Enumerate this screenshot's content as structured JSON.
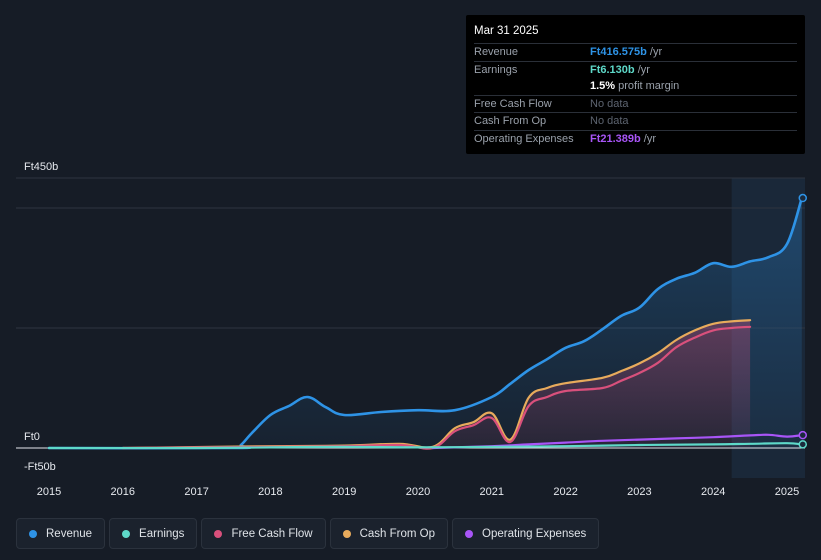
{
  "tooltip": {
    "date": "Mar 31 2025",
    "rows": [
      {
        "label": "Revenue",
        "value": "Ft416.575b",
        "unit": "/yr",
        "color": "#2e93e6"
      },
      {
        "label": "Earnings",
        "value": "Ft6.130b",
        "unit": "/yr",
        "color": "#5ed9c9"
      },
      {
        "label": "",
        "value": "1.5%",
        "unit": "profit margin",
        "color": "#ffffff"
      },
      {
        "label": "Free Cash Flow",
        "value": "No data",
        "unit": "",
        "color": ""
      },
      {
        "label": "Cash From Op",
        "value": "No data",
        "unit": "",
        "color": ""
      },
      {
        "label": "Operating Expenses",
        "value": "Ft21.389b",
        "unit": "/yr",
        "color": "#a855f7"
      }
    ]
  },
  "colors": {
    "revenue": "#2e93e6",
    "earnings": "#5ed9c9",
    "fcf": "#d9507c",
    "cfo": "#e8ab5c",
    "opex": "#a855f7",
    "background": "#161c26"
  },
  "legend": [
    {
      "key": "revenue",
      "label": "Revenue",
      "color": "#2e93e6"
    },
    {
      "key": "earnings",
      "label": "Earnings",
      "color": "#5ed9c9"
    },
    {
      "key": "fcf",
      "label": "Free Cash Flow",
      "color": "#d9507c"
    },
    {
      "key": "cfo",
      "label": "Cash From Op",
      "color": "#e8ab5c"
    },
    {
      "key": "opex",
      "label": "Operating Expenses",
      "color": "#a855f7"
    }
  ],
  "chart_data": {
    "type": "area",
    "title": "",
    "xlabel": "",
    "ylabel": "",
    "ylim": [
      -50,
      450
    ],
    "xlim": [
      2014.75,
      2025.25
    ],
    "y_tick_labels": [
      {
        "value": 450,
        "label": "Ft450b"
      },
      {
        "value": 0,
        "label": "Ft0"
      },
      {
        "value": -50,
        "label": "-Ft50b"
      }
    ],
    "x_ticks": [
      2015,
      2016,
      2017,
      2018,
      2019,
      2020,
      2021,
      2022,
      2023,
      2024,
      2025
    ],
    "forecast_start": 2024.25,
    "series": [
      {
        "key": "revenue",
        "name": "Revenue",
        "x": [
          2015.0,
          2017.5,
          2017.6,
          2017.75,
          2018.0,
          2018.25,
          2018.5,
          2018.75,
          2019.0,
          2019.5,
          2020.0,
          2020.5,
          2021.0,
          2021.25,
          2021.5,
          2021.75,
          2022.0,
          2022.25,
          2022.5,
          2022.75,
          2023.0,
          2023.25,
          2023.5,
          2023.75,
          2024.0,
          2024.25,
          2024.5,
          2024.75,
          2025.0,
          2025.2
        ],
        "y": [
          0,
          0,
          5,
          25,
          55,
          70,
          85,
          68,
          55,
          60,
          63,
          63,
          85,
          107,
          130,
          148,
          167,
          178,
          198,
          220,
          234,
          265,
          282,
          292,
          308,
          302,
          311,
          318,
          340,
          416.6
        ]
      },
      {
        "key": "earnings",
        "name": "Earnings",
        "x": [
          2015.0,
          2017.0,
          2018.0,
          2019.0,
          2020.0,
          2021.0,
          2022.0,
          2023.0,
          2024.0,
          2024.5,
          2025.0,
          2025.2
        ],
        "y": [
          0,
          0,
          1,
          2,
          1,
          2,
          3,
          5,
          6,
          7,
          8,
          6.1
        ]
      },
      {
        "key": "fcf",
        "name": "Free Cash Flow",
        "x": [
          2016.0,
          2018.0,
          2019.0,
          2019.75,
          2020.2,
          2020.5,
          2020.75,
          2021.0,
          2021.25,
          2021.5,
          2021.75,
          2022.0,
          2022.5,
          2022.75,
          2023.0,
          2023.25,
          2023.5,
          2023.75,
          2024.0,
          2024.25,
          2024.5
        ],
        "y": [
          0,
          2,
          3,
          5,
          0,
          28,
          38,
          50,
          10,
          70,
          85,
          95,
          100,
          112,
          125,
          142,
          168,
          184,
          196,
          200,
          202
        ]
      },
      {
        "key": "cfo",
        "name": "Cash From Op",
        "x": [
          2016.0,
          2018.0,
          2019.0,
          2019.75,
          2020.2,
          2020.5,
          2020.75,
          2021.0,
          2021.25,
          2021.5,
          2021.75,
          2022.0,
          2022.5,
          2022.75,
          2023.0,
          2023.25,
          2023.5,
          2023.75,
          2024.0,
          2024.25,
          2024.5
        ],
        "y": [
          0,
          3,
          4,
          7,
          2,
          33,
          43,
          58,
          14,
          84,
          100,
          108,
          117,
          128,
          141,
          158,
          180,
          196,
          207,
          211,
          213
        ]
      },
      {
        "key": "opex",
        "name": "Operating Expenses",
        "x": [
          2020.2,
          2021.0,
          2021.5,
          2022.0,
          2022.5,
          2023.0,
          2023.5,
          2024.0,
          2024.5,
          2024.75,
          2025.0,
          2025.2
        ],
        "y": [
          0,
          3,
          6,
          9,
          12,
          14,
          16,
          18,
          21,
          22,
          19,
          21.4
        ]
      }
    ]
  }
}
